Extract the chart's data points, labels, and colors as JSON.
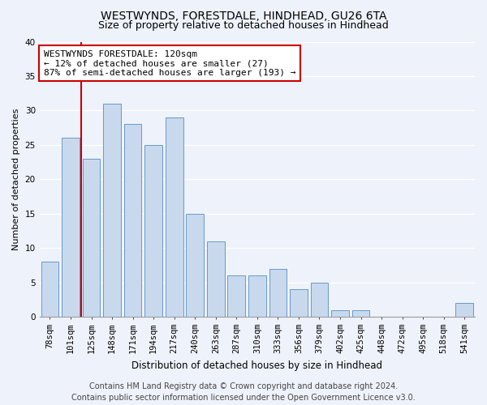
{
  "title": "WESTWYNDS, FORESTDALE, HINDHEAD, GU26 6TA",
  "subtitle": "Size of property relative to detached houses in Hindhead",
  "xlabel": "Distribution of detached houses by size in Hindhead",
  "ylabel": "Number of detached properties",
  "categories": [
    "78sqm",
    "101sqm",
    "125sqm",
    "148sqm",
    "171sqm",
    "194sqm",
    "217sqm",
    "240sqm",
    "263sqm",
    "287sqm",
    "310sqm",
    "333sqm",
    "356sqm",
    "379sqm",
    "402sqm",
    "425sqm",
    "448sqm",
    "472sqm",
    "495sqm",
    "518sqm",
    "541sqm"
  ],
  "values": [
    8,
    26,
    23,
    31,
    28,
    25,
    29,
    15,
    11,
    6,
    6,
    7,
    4,
    5,
    1,
    1,
    0,
    0,
    0,
    0,
    2
  ],
  "bar_color": "#c8d9ee",
  "bar_edge_color": "#6699cc",
  "vline_position": 1.5,
  "vline_color": "#cc0000",
  "annotation_text": "WESTWYNDS FORESTDALE: 120sqm\n← 12% of detached houses are smaller (27)\n87% of semi-detached houses are larger (193) →",
  "annotation_box_facecolor": "#ffffff",
  "annotation_box_edgecolor": "#cc0000",
  "ylim": [
    0,
    40
  ],
  "yticks": [
    0,
    5,
    10,
    15,
    20,
    25,
    30,
    35,
    40
  ],
  "background_color": "#eef2fa",
  "grid_color": "#ffffff",
  "title_fontsize": 10,
  "subtitle_fontsize": 9,
  "xlabel_fontsize": 8.5,
  "ylabel_fontsize": 8,
  "tick_fontsize": 7.5,
  "annotation_fontsize": 8,
  "footer_fontsize": 7,
  "footer_line1": "Contains HM Land Registry data © Crown copyright and database right 2024.",
  "footer_line2": "Contains public sector information licensed under the Open Government Licence v3.0."
}
